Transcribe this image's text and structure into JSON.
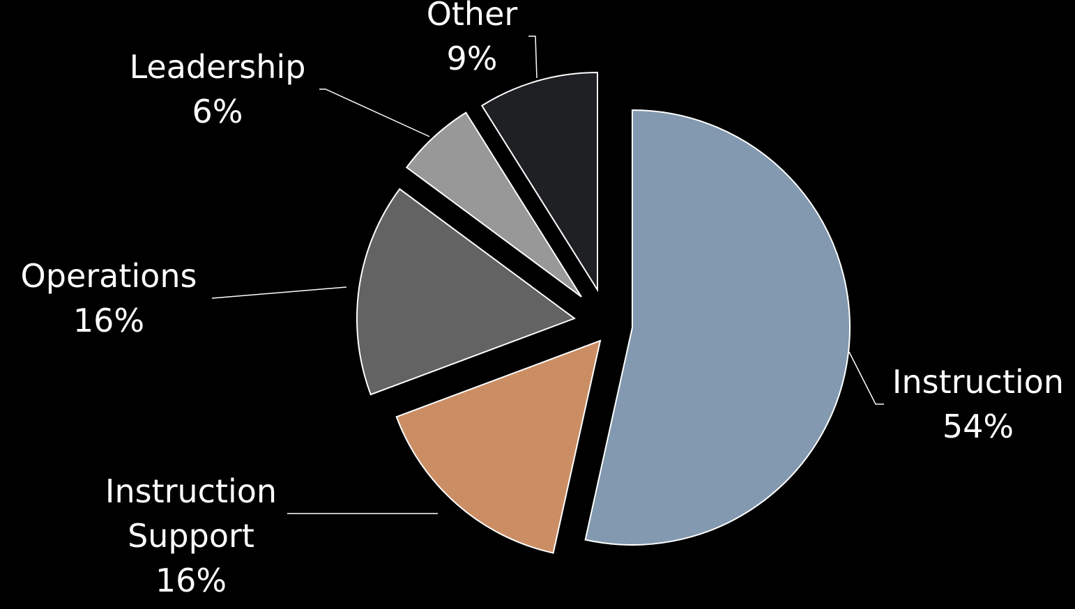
{
  "chart_data": {
    "type": "pie",
    "title": "",
    "background": "#000000",
    "slice_stroke": "#ffffff",
    "leader_color": "#ffffff",
    "slices": [
      {
        "label_lines": [
          "Instruction"
        ],
        "label": "Instruction",
        "value": 54,
        "value_label": "54%",
        "color": "#8299b0"
      },
      {
        "label_lines": [
          "Instruction",
          "Support"
        ],
        "label": "Instruction Support",
        "value": 16,
        "value_label": "16%",
        "color": "#cb8e64"
      },
      {
        "label_lines": [
          "Operations"
        ],
        "label": "Operations",
        "value": 16,
        "value_label": "16%",
        "color": "#636363"
      },
      {
        "label_lines": [
          "Leadership"
        ],
        "label": "Leadership",
        "value": 6,
        "value_label": "6%",
        "color": "#989898"
      },
      {
        "label_lines": [
          "Other"
        ],
        "label": "Other",
        "value": 9,
        "value_label": "9%",
        "color": "#1f2023"
      }
    ]
  }
}
